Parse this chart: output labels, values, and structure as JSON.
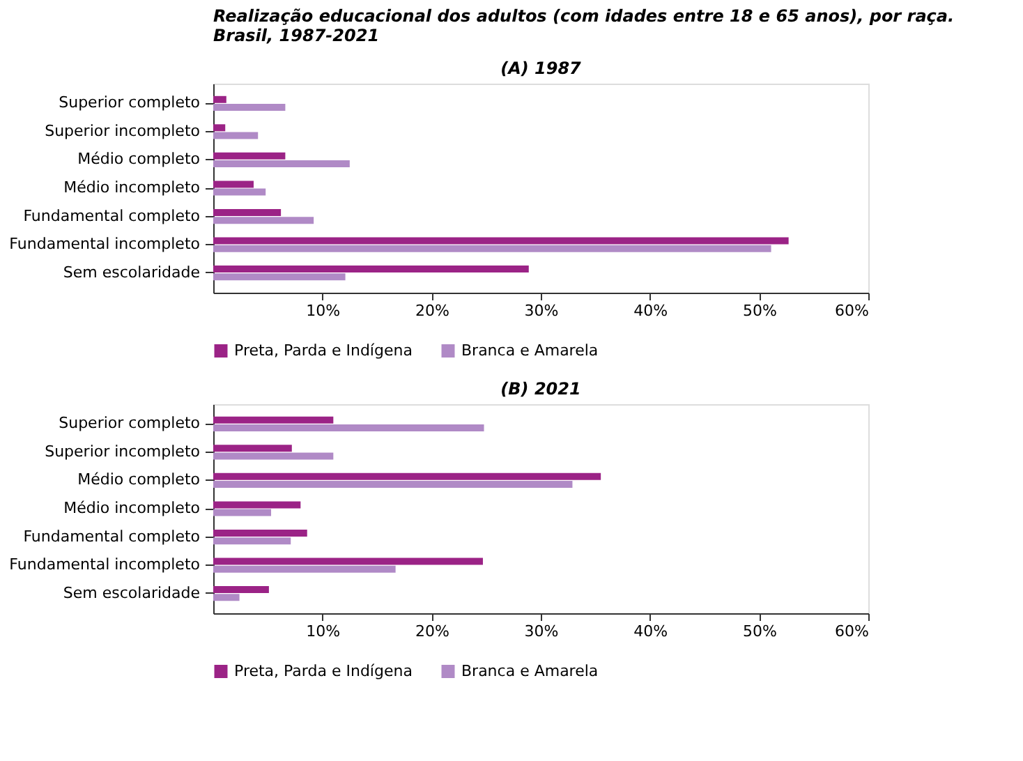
{
  "chart_data": [
    {
      "type": "bar",
      "orientation": "horizontal",
      "title": "Realização educacional dos adultos (com idades entre  18 e 65 anos), por raça. Brasil, 1987-2021",
      "subtitle": "(A) 1987",
      "categories": [
        "Superior completo",
        "Superior incompleto",
        "Médio completo",
        "Médio incompleto",
        "Fundamental completo",
        "Fundamental incompleto",
        "Sem escolaridade"
      ],
      "series": [
        {
          "name": "Preta, Parda e Indígena",
          "color": "#9b2386",
          "values": [
            1.2,
            1.1,
            6.6,
            3.7,
            6.2,
            52.7,
            28.9
          ]
        },
        {
          "name": "Branca e Amarela",
          "color": "#b08ac6",
          "values": [
            6.6,
            4.1,
            12.5,
            4.8,
            9.2,
            51.1,
            12.1
          ]
        }
      ],
      "xlim": [
        0,
        60
      ],
      "xticks": [
        {
          "value": 10,
          "label": "10%"
        },
        {
          "value": 20,
          "label": "20%"
        },
        {
          "value": 30,
          "label": "30%"
        },
        {
          "value": 40,
          "label": "40%"
        },
        {
          "value": 50,
          "label": "50%"
        },
        {
          "value": 60,
          "label": "60%"
        }
      ],
      "grid": false,
      "legend": "bottom"
    },
    {
      "type": "bar",
      "orientation": "horizontal",
      "title": "(B) 2021",
      "categories": [
        "Superior completo",
        "Superior incompleto",
        "Médio completo",
        "Médio incompleto",
        "Fundamental completo",
        "Fundamental incompleto",
        "Sem escolaridade"
      ],
      "series": [
        {
          "name": "Preta, Parda e Indígena",
          "color": "#9b2386",
          "values": [
            11.0,
            7.2,
            35.5,
            8.0,
            8.6,
            24.7,
            5.1
          ]
        },
        {
          "name": "Branca e Amarela",
          "color": "#b08ac6",
          "values": [
            24.8,
            11.0,
            32.9,
            5.3,
            7.1,
            16.7,
            2.4
          ]
        }
      ],
      "xlim": [
        0,
        60
      ],
      "xticks": [
        {
          "value": 10,
          "label": "10%"
        },
        {
          "value": 20,
          "label": "20%"
        },
        {
          "value": 30,
          "label": "30%"
        },
        {
          "value": 40,
          "label": "40%"
        },
        {
          "value": 50,
          "label": "50%"
        },
        {
          "value": 60,
          "label": "60%"
        }
      ],
      "grid": false,
      "legend": "bottom"
    }
  ]
}
